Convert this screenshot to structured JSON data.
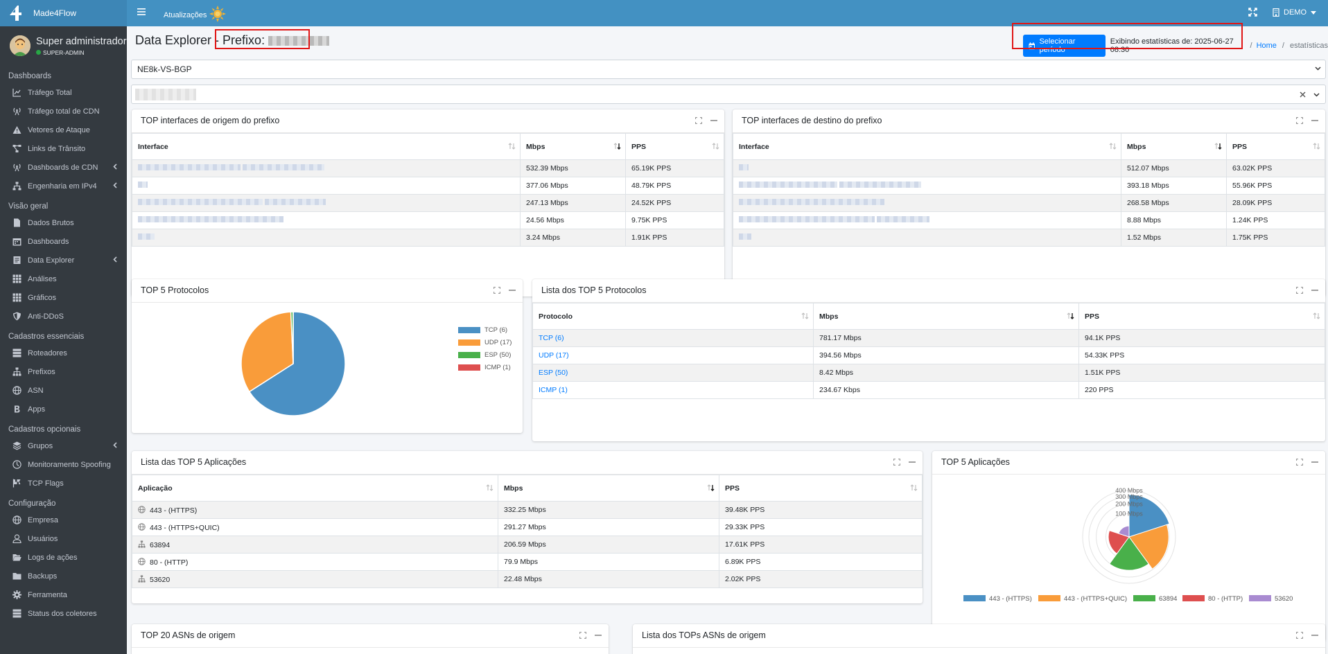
{
  "topnav": {
    "brand": "Made4Flow",
    "updates_label": "Atualizações",
    "account_label": "DEMO"
  },
  "user": {
    "name": "Super administrador",
    "role": "SUPER-ADMIN"
  },
  "sidebar": {
    "sections": [
      {
        "title": "Dashboards",
        "items": [
          {
            "label": "Tráfego Total",
            "icon": "chart-line-icon"
          },
          {
            "label": "Tráfego total de CDN",
            "icon": "broadcast-tower-icon"
          },
          {
            "label": "Vetores de Ataque",
            "icon": "warning-icon"
          },
          {
            "label": "Links de Trânsito",
            "icon": "project-diagram-icon"
          },
          {
            "label": "Dashboards de CDN",
            "icon": "broadcast-tower-icon",
            "arrow": true
          },
          {
            "label": "Engenharia em IPv4",
            "icon": "network-icon",
            "arrow": true
          }
        ]
      },
      {
        "title": "Visão geral",
        "items": [
          {
            "label": "Dados Brutos",
            "icon": "file-icon"
          },
          {
            "label": "Dashboards",
            "icon": "calendar-icon"
          },
          {
            "label": "Data Explorer",
            "icon": "file-alt-icon",
            "arrow": true
          },
          {
            "label": "Análises",
            "icon": "grid-icon"
          },
          {
            "label": "Gráficos",
            "icon": "grid-icon"
          },
          {
            "label": "Anti-DDoS",
            "icon": "shield-icon"
          }
        ]
      },
      {
        "title": "Cadastros essenciais",
        "items": [
          {
            "label": "Roteadores",
            "icon": "server-icon"
          },
          {
            "label": "Prefixos",
            "icon": "sitemap-icon"
          },
          {
            "label": "ASN",
            "icon": "globe-icon"
          },
          {
            "label": "Apps",
            "icon": "bitcoin-icon"
          }
        ]
      },
      {
        "title": "Cadastros opcionais",
        "items": [
          {
            "label": "Grupos",
            "icon": "layers-icon",
            "arrow": true
          },
          {
            "label": "Monitoramento Spoofing",
            "icon": "user-secret-icon"
          },
          {
            "label": "TCP Flags",
            "icon": "flag-icon"
          }
        ]
      },
      {
        "title": "Configuração",
        "items": [
          {
            "label": "Empresa",
            "icon": "globe-icon"
          },
          {
            "label": "Usuários",
            "icon": "user-icon"
          },
          {
            "label": "Logs de ações",
            "icon": "folder-open-icon"
          },
          {
            "label": "Backups",
            "icon": "folder-icon"
          },
          {
            "label": "Ferramenta",
            "icon": "gear-icon"
          },
          {
            "label": "Status dos coletores",
            "icon": "server-icon"
          }
        ]
      }
    ]
  },
  "page": {
    "title": "Data Explorer - ",
    "prefix_label": "Prefixo:",
    "select_period_label": "Selecionar período",
    "stats_label": "Exibindo estatísticas de: 2025-06-27 08:30",
    "breadcrumb_home": "Home",
    "breadcrumb_sep": "/",
    "breadcrumb_current": "estatísticas",
    "router_select": "NE8k-VS-BGP"
  },
  "src_iface": {
    "title": "TOP interfaces de origem do prefixo",
    "columns": [
      "Interface",
      "Mbps",
      "PPS"
    ],
    "rows": [
      {
        "mbps": "532.39 Mbps",
        "pps": "65.19K PPS"
      },
      {
        "mbps": "377.06 Mbps",
        "pps": "48.79K PPS"
      },
      {
        "mbps": "247.13 Mbps",
        "pps": "24.52K PPS"
      },
      {
        "mbps": "24.56 Mbps",
        "pps": "9.75K PPS"
      },
      {
        "mbps": "3.24 Mbps",
        "pps": "1.91K PPS"
      }
    ]
  },
  "dst_iface": {
    "title": "TOP interfaces de destino do prefixo",
    "columns": [
      "Interface",
      "Mbps",
      "PPS"
    ],
    "rows": [
      {
        "mbps": "512.07 Mbps",
        "pps": "63.02K PPS"
      },
      {
        "mbps": "393.18 Mbps",
        "pps": "55.96K PPS"
      },
      {
        "mbps": "268.58 Mbps",
        "pps": "28.09K PPS"
      },
      {
        "mbps": "8.88 Mbps",
        "pps": "1.24K PPS"
      },
      {
        "mbps": "1.52 Mbps",
        "pps": "1.75K PPS"
      }
    ]
  },
  "protocols_chart": {
    "title": "TOP 5 Protocolos"
  },
  "protocols_list": {
    "title": "Lista dos TOP 5 Protocolos",
    "columns": [
      "Protocolo",
      "Mbps",
      "PPS"
    ],
    "rows": [
      {
        "name": "TCP (6)",
        "mbps": "781.17 Mbps",
        "pps": "94.1K PPS"
      },
      {
        "name": "UDP (17)",
        "mbps": "394.56 Mbps",
        "pps": "54.33K PPS"
      },
      {
        "name": "ESP (50)",
        "mbps": "8.42 Mbps",
        "pps": "1.51K PPS"
      },
      {
        "name": "ICMP (1)",
        "mbps": "234.67 Kbps",
        "pps": "220 PPS"
      }
    ]
  },
  "apps_list": {
    "title": "Lista das TOP 5 Aplicações",
    "columns": [
      "Aplicação",
      "Mbps",
      "PPS"
    ],
    "rows": [
      {
        "name": "443 - (HTTPS)",
        "icon": "globe-icon",
        "mbps": "332.25 Mbps",
        "pps": "39.48K PPS"
      },
      {
        "name": "443 - (HTTPS+QUIC)",
        "icon": "globe-icon",
        "mbps": "291.27 Mbps",
        "pps": "29.33K PPS"
      },
      {
        "name": "63894",
        "icon": "sitemap-icon",
        "mbps": "206.59 Mbps",
        "pps": "17.61K PPS"
      },
      {
        "name": "80 - (HTTP)",
        "icon": "globe-icon",
        "mbps": "79.9 Mbps",
        "pps": "6.89K PPS"
      },
      {
        "name": "53620",
        "icon": "sitemap-icon",
        "mbps": "22.48 Mbps",
        "pps": "2.02K PPS"
      }
    ]
  },
  "apps_chart": {
    "title": "TOP 5 Aplicações"
  },
  "asn_chart": {
    "title": "TOP 20 ASNs de origem"
  },
  "asn_list": {
    "title": "Lista dos TOPs ASNs de origem"
  },
  "colors": {
    "accent": "#007bff",
    "topbar": "#4391c2",
    "sidebar": "#343a40",
    "highlight": "#e01616"
  },
  "chart_data": [
    {
      "type": "pie",
      "title": "TOP 5 Protocolos",
      "categories": [
        "TCP (6)",
        "UDP (17)",
        "ESP (50)",
        "ICMP (1)"
      ],
      "values": [
        781.17,
        394.56,
        8.42,
        0.23
      ],
      "colors": [
        "#4a90c4",
        "#f99c3a",
        "#49b04a",
        "#de4f4f"
      ],
      "legend": "right"
    },
    {
      "type": "polar-area",
      "title": "TOP 5 Aplicações",
      "categories": [
        "443 - (HTTPS)",
        "443 - (HTTPS+QUIC)",
        "63894",
        "80 - (HTTP)",
        "53620"
      ],
      "values": [
        332.25,
        291.27,
        206.59,
        79.9,
        22.48
      ],
      "colors": [
        "#4a90c4",
        "#f99c3a",
        "#49b04a",
        "#de4f4f",
        "#a98bd1"
      ],
      "tick_labels": [
        "100 Mbps",
        "200 Mbps",
        "300 Mbps",
        "400 Mbps"
      ],
      "rmax": 400,
      "legend": "bottom"
    }
  ]
}
